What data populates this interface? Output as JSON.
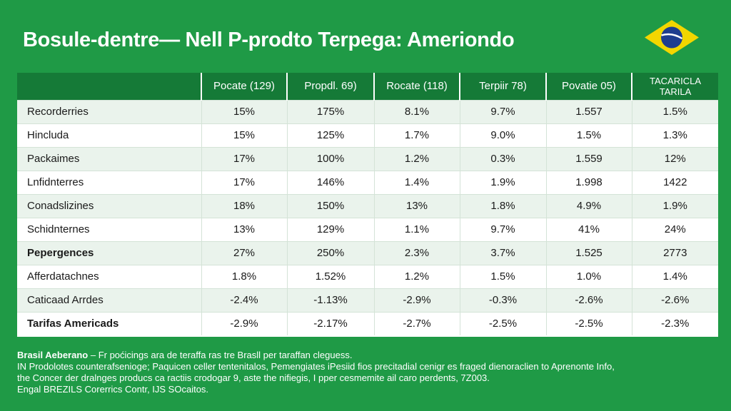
{
  "title": "Bosule-dentre— Nell P-prodto Terpega: Ameriondo",
  "flag": {
    "name": "brazil-flag",
    "green": "#1f9a46",
    "yellow": "#f2d600",
    "blue": "#1d3d8f"
  },
  "chart_data": {
    "type": "table",
    "columns": [
      "",
      "Pocate (129)",
      "Propdl. 69)",
      "Rocate (118)",
      "Terpiir 78)",
      "Povatie 05)",
      [
        "TACARICLA",
        "TARILA"
      ]
    ],
    "rows": [
      {
        "label": "Recorderries",
        "values": [
          "15%",
          "175%",
          "8.1%",
          "9.7%",
          "1.557",
          "1.5%"
        ],
        "bold": false
      },
      {
        "label": "Hincluda",
        "values": [
          "15%",
          "125%",
          "1.7%",
          "9.0%",
          "1.5%",
          "1.3%"
        ],
        "bold": false
      },
      {
        "label": "Packaimes",
        "values": [
          "17%",
          "100%",
          "1.2%",
          "0.3%",
          "1.559",
          "12%"
        ],
        "bold": false
      },
      {
        "label": "Lnfidnterres",
        "values": [
          "17%",
          "146%",
          "1.4%",
          "1.9%",
          "1.998",
          "1422"
        ],
        "bold": false
      },
      {
        "label": "Conadslizines",
        "values": [
          "18%",
          "150%",
          "13%",
          "1.8%",
          "4.9%",
          "1.9%"
        ],
        "bold": false
      },
      {
        "label": "Schidnternes",
        "values": [
          "13%",
          "129%",
          "1.1%",
          "9.7%",
          "41%",
          "24%"
        ],
        "bold": false
      },
      {
        "label": "Pepergences",
        "values": [
          "27%",
          "250%",
          "2.3%",
          "3.7%",
          "1.525",
          "2773"
        ],
        "bold": true
      },
      {
        "label": "Afferdatachnes",
        "values": [
          "1.8%",
          "1.52%",
          "1.2%",
          "1.5%",
          "1.0%",
          "1.4%"
        ],
        "bold": false
      },
      {
        "label": "Caticaad Arrdes",
        "values": [
          "-2.4%",
          "-1.13%",
          "-2.9%",
          "-0.3%",
          "-2.6%",
          "-2.6%"
        ],
        "bold": false
      },
      {
        "label": "Tarifas Americads",
        "values": [
          "-2.9%",
          "-2.17%",
          "-2.7%",
          "-2.5%",
          "-2.5%",
          "-2.3%"
        ],
        "bold": true
      }
    ]
  },
  "footnote": {
    "lead": "Brasil Aeberano",
    "line1_rest": " – Fr poćicings ara de teraffa ras tre Brasll per taraffan cleguess.",
    "line2": "IN Prodolotes counterafsenioge; Paquicen celler tentenitalos, Pemengiates iPesiid fios precitadial cenigr es fraged dienoraclien to Aprenonte Info,",
    "line3": "the Concer der dralnges producs ca ractiis crodogar 9, aste the nifiegis, I pper cesmemite ail caro perdents, 7Z003.",
    "line4": "Engal BREZILS Corerrics Contr, IJS SOcaitos."
  }
}
